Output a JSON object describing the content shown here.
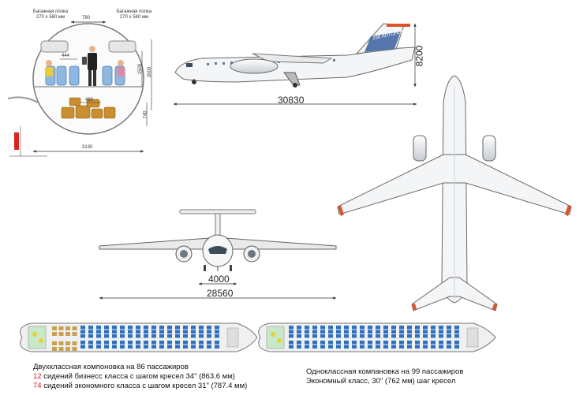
{
  "cross_section": {
    "shelf_left_title": "Багажная полка",
    "shelf_left_size": "270 x 560 мм",
    "shelf_right_title": "Багажная полка",
    "shelf_right_size": "270 x 560 мм",
    "dim_top": "790",
    "dim_aisle": "444",
    "dim_floor": "480",
    "dim_height_1": "1500",
    "dim_height_2": "2000",
    "dim_lower": "740",
    "dim_width": "3130"
  },
  "side_view": {
    "tail_text": "158 АНТОНОВ",
    "height_dim": "8200",
    "length_dim": "30830"
  },
  "front_view": {
    "track_dim": "4000",
    "span_dim": "28560"
  },
  "colors": {
    "fuselage": "#f4f5f6",
    "outline": "#6a6a6a",
    "blue_stripe": "#3a5f9e",
    "wing_tip": "#d9532c",
    "seat_blue": "#2f6fc0",
    "seat_business": "#c9a050",
    "cargo": "#c98f2e"
  },
  "layout_two_class": {
    "title": "Двухклассная компоновка на 86 пассажиров",
    "business_count": "12",
    "business_text": "сидений бизнесс класса с шагом кресел 34\" (863.6 мм)",
    "economy_count": "74",
    "economy_text": "сидений экономного класса с шагом кресел 31\" (787.4 мм)"
  },
  "layout_one_class": {
    "title": "Одноклассная компановка на 99 пассажиров",
    "text": "Экономный класс, 30\" (762 мм) шаг кресел"
  }
}
